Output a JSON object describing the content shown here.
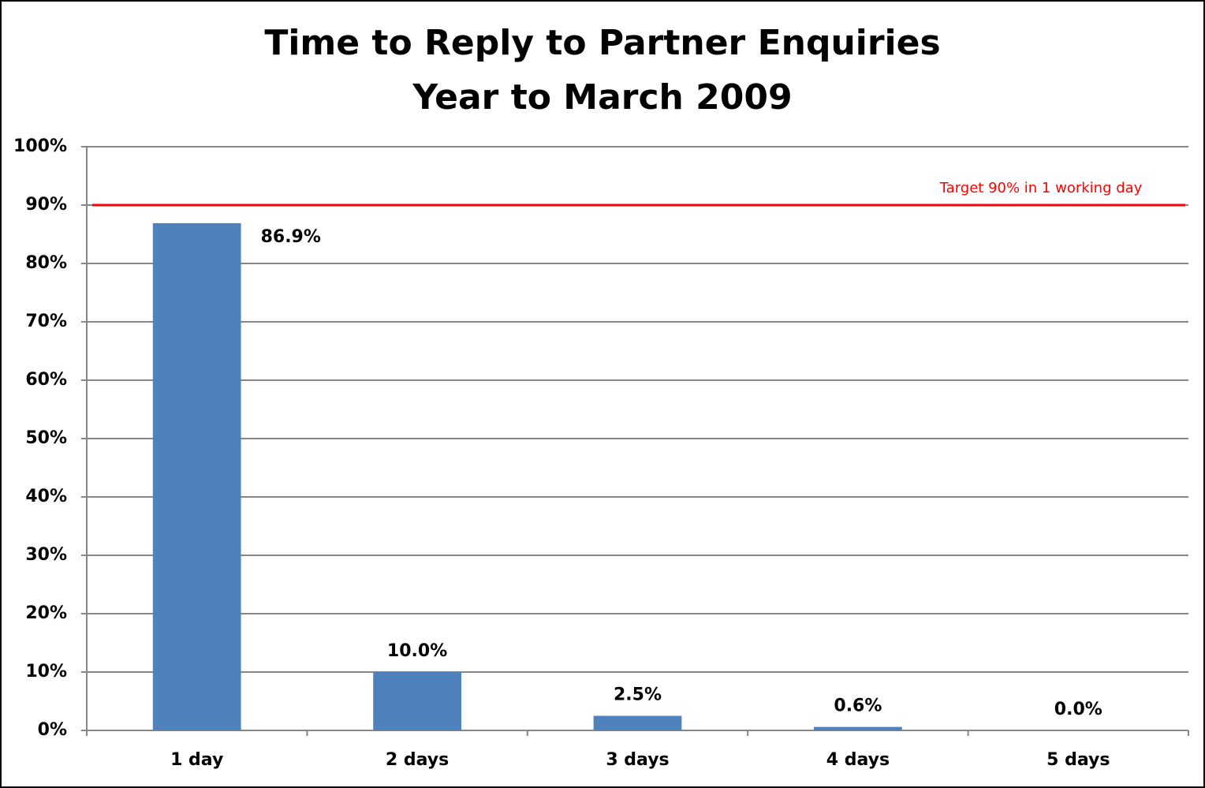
{
  "chart_data": {
    "type": "bar",
    "title": "Time to Reply to Partner Enquiries",
    "subtitle": "Year to March 2009",
    "categories": [
      "1 day",
      "2 days",
      "3 days",
      "4 days",
      "5 days"
    ],
    "values": [
      86.9,
      10.0,
      2.5,
      0.6,
      0.0
    ],
    "value_labels": [
      "86.9%",
      "10.0%",
      "2.5%",
      "0.6%",
      "0.0%"
    ],
    "color": "#4f81bd",
    "ylim": [
      0,
      100
    ],
    "yticks": [
      {
        "value": 0,
        "label": "0%"
      },
      {
        "value": 10,
        "label": "10%"
      },
      {
        "value": 20,
        "label": "20%"
      },
      {
        "value": 30,
        "label": "30%"
      },
      {
        "value": 40,
        "label": "40%"
      },
      {
        "value": 50,
        "label": "50%"
      },
      {
        "value": 60,
        "label": "60%"
      },
      {
        "value": 70,
        "label": "70%"
      },
      {
        "value": 80,
        "label": "80%"
      },
      {
        "value": 90,
        "label": "90%"
      },
      {
        "value": 100,
        "label": "100%"
      }
    ],
    "grid": true,
    "target": {
      "value": 90,
      "label": "Target 90% in 1 working day",
      "color": "#ff0000"
    }
  }
}
